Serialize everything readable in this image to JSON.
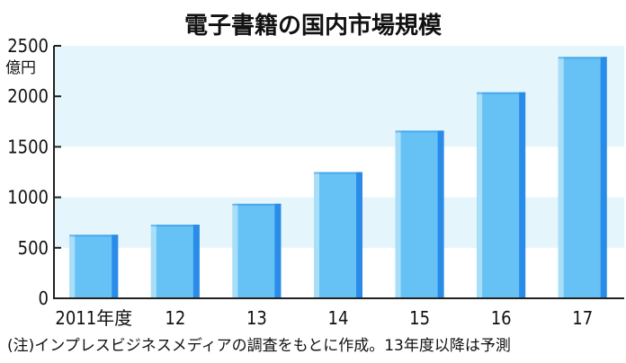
{
  "chart_data": {
    "type": "bar",
    "title": "電子書籍の国内市場規模",
    "unit_label": "億円",
    "categories": [
      "2011年度",
      "12",
      "13",
      "14",
      "15",
      "16",
      "17"
    ],
    "values": [
      629,
      729,
      936,
      1250,
      1660,
      2040,
      2390
    ],
    "ylim": [
      0,
      2500
    ],
    "yticks": [
      "0",
      "500",
      "1000",
      "1500",
      "2000",
      "2500"
    ],
    "grid": "alternating bands",
    "note": "(注)インプレスビジネスメディアの調査をもとに作成。13年度以降は予測",
    "colors": {
      "bar_main": "#66c2f4",
      "bar_highlight": "#a9def8",
      "bar_shade": "#2a8ce8",
      "band": "#e4f6fb",
      "axis": "#222222"
    }
  }
}
